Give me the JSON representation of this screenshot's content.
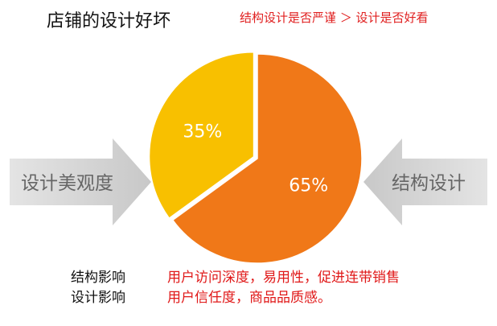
{
  "title": "店铺的设计好坏",
  "subtitle": "结构设计是否严谨  ＞ 设计是否好看",
  "arrows": {
    "left": "设计美观度",
    "right": "结构设计"
  },
  "legend_rows": [
    {
      "label": "结构影响",
      "desc": "用户访问深度，易用性，促进连带销售"
    },
    {
      "label": "设计影响",
      "desc": "用户信任度，商品品质感。"
    }
  ],
  "chart_data": {
    "type": "pie",
    "slices": [
      {
        "label": "65%",
        "value": 65,
        "color": "#f07818"
      },
      {
        "label": "35%",
        "value": 35,
        "color": "#f8c000"
      }
    ]
  }
}
